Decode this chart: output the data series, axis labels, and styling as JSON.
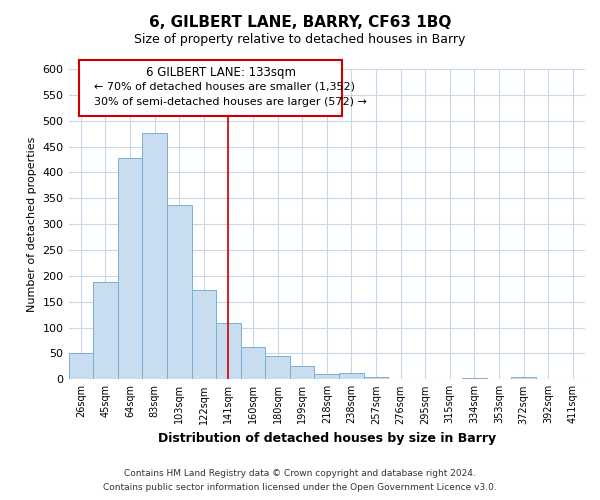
{
  "title": "6, GILBERT LANE, BARRY, CF63 1BQ",
  "subtitle": "Size of property relative to detached houses in Barry",
  "xlabel": "Distribution of detached houses by size in Barry",
  "ylabel": "Number of detached properties",
  "bar_color": "#c8ddf0",
  "bar_edge_color": "#7aafd4",
  "categories": [
    "26sqm",
    "45sqm",
    "64sqm",
    "83sqm",
    "103sqm",
    "122sqm",
    "141sqm",
    "160sqm",
    "180sqm",
    "199sqm",
    "218sqm",
    "238sqm",
    "257sqm",
    "276sqm",
    "295sqm",
    "315sqm",
    "334sqm",
    "353sqm",
    "372sqm",
    "392sqm",
    "411sqm"
  ],
  "values": [
    50,
    188,
    428,
    477,
    337,
    172,
    108,
    62,
    45,
    25,
    10,
    12,
    5,
    0,
    0,
    0,
    2,
    0,
    4,
    0,
    0
  ],
  "vline_x": 6.0,
  "vline_color": "#cc0000",
  "ylim": [
    0,
    600
  ],
  "yticks": [
    0,
    50,
    100,
    150,
    200,
    250,
    300,
    350,
    400,
    450,
    500,
    550,
    600
  ],
  "annotation_title": "6 GILBERT LANE: 133sqm",
  "annotation_line1": "← 70% of detached houses are smaller (1,352)",
  "annotation_line2": "30% of semi-detached houses are larger (572) →",
  "annotation_box_color": "#ffffff",
  "annotation_box_edge": "#cc0000",
  "footer_line1": "Contains HM Land Registry data © Crown copyright and database right 2024.",
  "footer_line2": "Contains public sector information licensed under the Open Government Licence v3.0.",
  "background_color": "#ffffff",
  "grid_color": "#c8d8e8"
}
